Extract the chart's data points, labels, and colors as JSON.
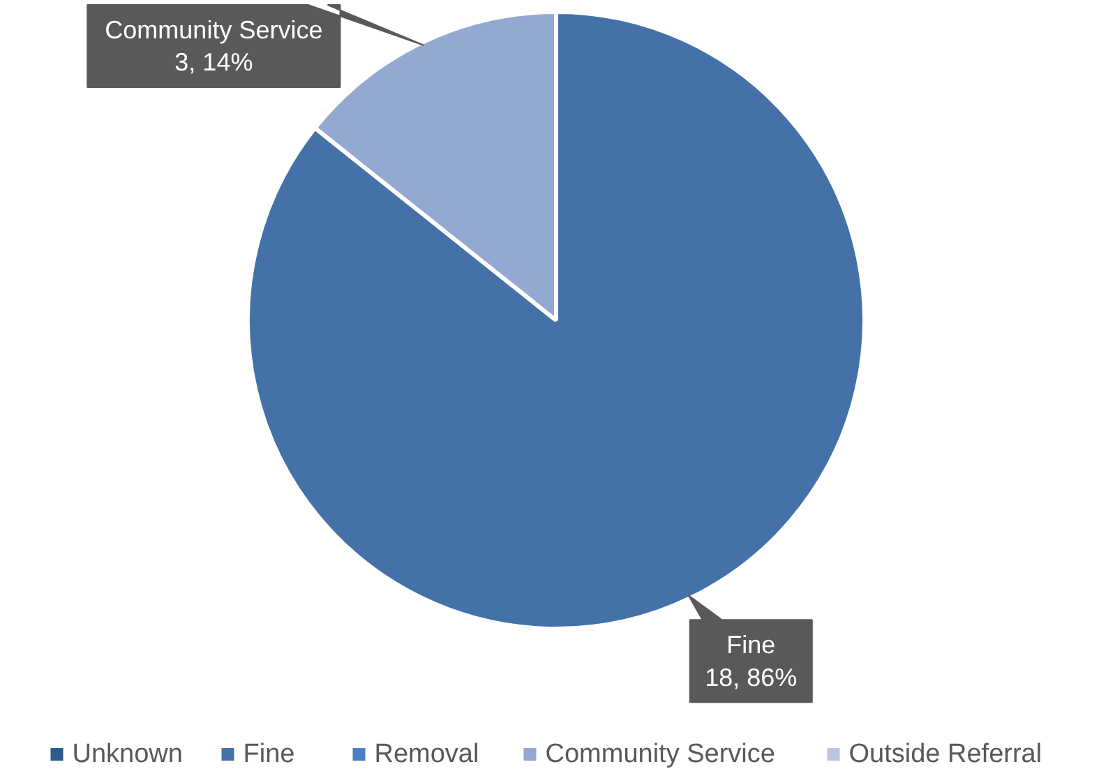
{
  "chart_data": {
    "type": "pie",
    "categories": [
      "Unknown",
      "Fine",
      "Removal",
      "Community Service",
      "Outside Referral"
    ],
    "values": [
      0,
      18,
      0,
      3,
      0
    ],
    "colors": [
      "#2e5a8c",
      "#4472a8",
      "#4a7fc1",
      "#94a9d2",
      "#b9c6e0"
    ],
    "value_labels": [
      null,
      "18, 86%",
      null,
      "3, 14%",
      null
    ],
    "legend": "bottom"
  }
}
